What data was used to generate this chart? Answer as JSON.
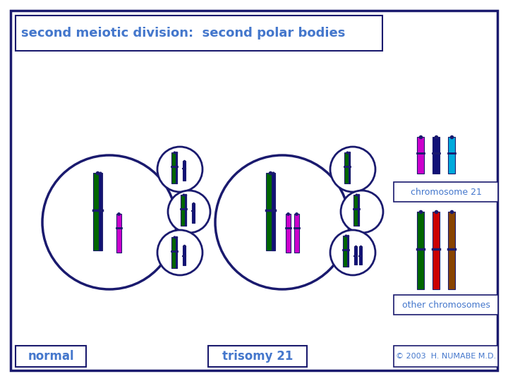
{
  "title": "second meiotic division:  second polar bodies",
  "label_normal": "normal",
  "label_trisomy": "trisomy 21",
  "label_chr21": "chromosome 21",
  "label_other": "other chromosomes",
  "label_copyright": "© 2003  H. NUMABE M.D.",
  "bg_color": "#ffffff",
  "border_color": "#1a1a6e",
  "text_color": "#4477cc",
  "chr_dark_green": "#006600",
  "chr_magenta": "#cc00cc",
  "chr_dark_blue": "#111177",
  "chr_purple": "#6600aa",
  "chr_cyan": "#00aadd",
  "chr_red": "#cc0000",
  "chr_brown": "#884400",
  "centromere_color": "#1a1a6e"
}
